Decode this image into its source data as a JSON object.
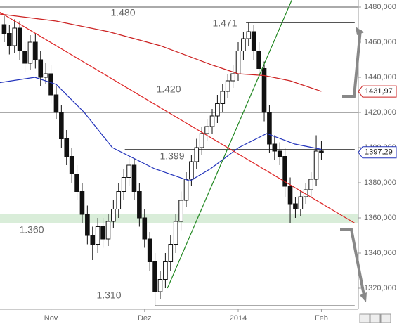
{
  "chart_data": {
    "type": "candlestick",
    "categories": [
      null,
      null,
      null,
      null,
      null,
      null,
      null,
      null,
      null,
      "Nov",
      null,
      null,
      null,
      null,
      null,
      null,
      null,
      null,
      null,
      null,
      null,
      null,
      null,
      null,
      null,
      null,
      null,
      "Dez",
      null,
      null,
      null,
      null,
      null,
      null,
      null,
      null,
      null,
      null,
      null,
      null,
      null,
      null,
      null,
      null,
      null,
      "2014",
      null,
      null,
      null,
      null,
      null,
      null,
      null,
      null,
      null,
      null,
      null,
      null,
      null,
      null,
      null,
      "Feb"
    ],
    "open": [
      1470,
      1465,
      1458,
      1468,
      1455,
      1448,
      1460,
      1450,
      1440,
      1442,
      1430,
      1420,
      1405,
      1395,
      1385,
      1375,
      1362,
      1350,
      1345,
      1355,
      1348,
      1358,
      1365,
      1375,
      1383,
      1390,
      1375,
      1360,
      1348,
      1335,
      1318,
      1325,
      1335,
      1345,
      1358,
      1370,
      1382,
      1392,
      1400,
      1408,
      1412,
      1418,
      1425,
      1432,
      1438,
      1442,
      1455,
      1462,
      1466,
      1455,
      1445,
      1420,
      1402,
      1398,
      1395,
      1378,
      1368,
      1365,
      1372,
      1376,
      1382,
      1398
    ],
    "high": [
      1475,
      1470,
      1473,
      1472,
      1460,
      1464,
      1465,
      1455,
      1448,
      1447,
      1435,
      1424,
      1410,
      1400,
      1390,
      1380,
      1367,
      1355,
      1360,
      1360,
      1362,
      1370,
      1380,
      1388,
      1395,
      1394,
      1380,
      1365,
      1352,
      1340,
      1330,
      1340,
      1350,
      1362,
      1375,
      1386,
      1396,
      1405,
      1412,
      1416,
      1422,
      1430,
      1436,
      1442,
      1447,
      1460,
      1466,
      1471,
      1470,
      1460,
      1449,
      1424,
      1407,
      1403,
      1400,
      1383,
      1372,
      1376,
      1380,
      1386,
      1407,
      1404
    ],
    "low": [
      1460,
      1453,
      1454,
      1450,
      1443,
      1444,
      1445,
      1435,
      1436,
      1425,
      1416,
      1400,
      1390,
      1380,
      1370,
      1357,
      1345,
      1336,
      1340,
      1343,
      1344,
      1354,
      1360,
      1370,
      1378,
      1370,
      1355,
      1343,
      1330,
      1310,
      1314,
      1320,
      1330,
      1340,
      1353,
      1366,
      1378,
      1388,
      1396,
      1404,
      1408,
      1414,
      1420,
      1428,
      1434,
      1438,
      1450,
      1458,
      1450,
      1440,
      1415,
      1397,
      1393,
      1390,
      1372,
      1357,
      1360,
      1361,
      1368,
      1372,
      1378,
      1393
    ],
    "close": [
      1465,
      1458,
      1468,
      1455,
      1448,
      1460,
      1450,
      1440,
      1442,
      1430,
      1420,
      1405,
      1395,
      1385,
      1375,
      1362,
      1350,
      1345,
      1355,
      1348,
      1358,
      1365,
      1375,
      1383,
      1390,
      1375,
      1360,
      1348,
      1335,
      1318,
      1325,
      1335,
      1345,
      1358,
      1370,
      1382,
      1392,
      1400,
      1408,
      1412,
      1418,
      1425,
      1432,
      1438,
      1442,
      1455,
      1462,
      1466,
      1455,
      1445,
      1420,
      1402,
      1398,
      1395,
      1378,
      1368,
      1365,
      1372,
      1376,
      1382,
      1398,
      1397
    ],
    "overlays": [
      {
        "color": "#cc2222",
        "x": [
          -0.8,
          10,
          20,
          30,
          40,
          45,
          50,
          55,
          61
        ],
        "values": [
          1476,
          1472,
          1466,
          1458,
          1447,
          1442,
          1441,
          1438,
          1432
        ]
      },
      {
        "color": "#2233bb",
        "x": [
          -0.8,
          5.9,
          10,
          15.4,
          20.8,
          28.9,
          35.7,
          39.7,
          45.1,
          50.5,
          55.9,
          61
        ],
        "values": [
          1437,
          1440,
          1436,
          1420,
          1400,
          1388,
          1381,
          1388,
          1400,
          1408,
          1402,
          1399
        ]
      },
      {
        "color": "#dd2222",
        "x": [
          -0.8,
          67.4
        ],
        "values": [
          1477,
          1357
        ]
      },
      {
        "color": "#228822",
        "x": [
          31.4,
          55.3
        ],
        "values": [
          1320,
          1484
        ]
      }
    ],
    "levels": [
      {
        "value": 1480,
        "label": "1.480",
        "x": [
          -0.8,
          68.1
        ]
      },
      {
        "value": 1471,
        "label": "1.471",
        "x": [
          46.5,
          67.4
        ]
      },
      {
        "value": 1420,
        "label": "1.420",
        "x": [
          -0.8,
          68.1
        ]
      },
      {
        "value": 1399,
        "label": "1.399",
        "x": [
          23.2,
          67.4
        ]
      },
      {
        "value": 1360,
        "label": "1.360",
        "band": [
          1357,
          1362
        ]
      },
      {
        "value": 1310,
        "label": "1.310",
        "x": [
          29,
          67.4
        ]
      }
    ],
    "price_tags": [
      {
        "value": 1431.97,
        "label": "1431,97",
        "color": "#cc2222"
      },
      {
        "value": 1397.29,
        "label": "1397,29",
        "color": "#2233bb"
      }
    ],
    "xlim": [
      -0.8,
      68.1
    ],
    "ylim": [
      1308,
      1484
    ],
    "yticks": [
      {
        "value": 1320,
        "label": "1320,000"
      },
      {
        "value": 1340,
        "label": "1340,000"
      },
      {
        "value": 1360,
        "label": "1360,000"
      },
      {
        "value": 1380,
        "label": "1380,000"
      },
      {
        "value": 1400,
        "label": "1400,000"
      },
      {
        "value": 1420,
        "label": "1420,000"
      },
      {
        "value": 1440,
        "label": "1440,000"
      },
      {
        "value": 1460,
        "label": "1460,000"
      },
      {
        "value": 1480,
        "label": "1480,000"
      }
    ]
  }
}
